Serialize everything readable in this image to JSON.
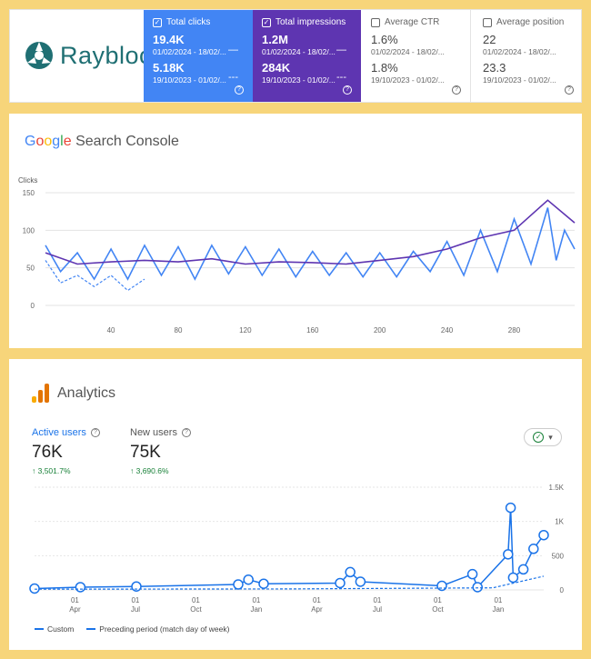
{
  "brand": {
    "name": "Raybloc"
  },
  "metrics": [
    {
      "label": "Total clicks",
      "checked": true,
      "current": "19.4K",
      "current_range": "01/02/2024 - 18/02/...",
      "previous": "5.18K",
      "previous_range": "19/10/2023 - 01/02/..."
    },
    {
      "label": "Total impressions",
      "checked": true,
      "current": "1.2M",
      "current_range": "01/02/2024 - 18/02/...",
      "previous": "284K",
      "previous_range": "19/10/2023 - 01/02/..."
    },
    {
      "label": "Average CTR",
      "checked": false,
      "current": "1.6%",
      "current_range": "01/02/2024 - 18/02/...",
      "previous": "1.8%",
      "previous_range": "19/10/2023 - 01/02/..."
    },
    {
      "label": "Average position",
      "checked": false,
      "current": "22",
      "current_range": "01/02/2024 - 18/02/...",
      "previous": "23.3",
      "previous_range": "19/10/2023 - 01/02/..."
    }
  ],
  "gsc": {
    "title_google": [
      "G",
      "o",
      "o",
      "g",
      "l",
      "e"
    ],
    "title_rest": "Search Console"
  },
  "analytics": {
    "title": "Analytics",
    "kpis": [
      {
        "label": "Active users",
        "value": "76K",
        "change": "↑ 3,501.7%"
      },
      {
        "label": "New users",
        "value": "75K",
        "change": "↑ 3,690.6%"
      }
    ],
    "legend": {
      "custom": "Custom",
      "preceding": "Preceding period (match day of week)"
    }
  },
  "colors": {
    "clicks": "#4285f4",
    "impressions": "#5e35b1",
    "ga_line": "#1a73e8"
  },
  "chart_data": [
    {
      "type": "line",
      "ylabel": "Clicks",
      "yticks": [
        0,
        50,
        100,
        150
      ],
      "xticks": [
        40,
        80,
        120,
        160,
        200,
        240,
        280
      ],
      "xlim": [
        1,
        316
      ],
      "ylim": [
        0,
        150
      ],
      "grid": true,
      "series": [
        {
          "style": "solid-light",
          "color": "#4285f4",
          "points": [
            [
              1,
              80
            ],
            [
              10,
              45
            ],
            [
              20,
              70
            ],
            [
              30,
              35
            ],
            [
              40,
              75
            ],
            [
              50,
              35
            ],
            [
              60,
              80
            ],
            [
              70,
              40
            ],
            [
              80,
              78
            ],
            [
              90,
              35
            ],
            [
              100,
              80
            ],
            [
              110,
              42
            ],
            [
              120,
              78
            ],
            [
              130,
              40
            ],
            [
              140,
              75
            ],
            [
              150,
              38
            ],
            [
              160,
              72
            ],
            [
              170,
              40
            ],
            [
              180,
              70
            ],
            [
              190,
              38
            ],
            [
              200,
              70
            ],
            [
              210,
              38
            ],
            [
              220,
              72
            ],
            [
              230,
              45
            ],
            [
              240,
              85
            ],
            [
              250,
              40
            ],
            [
              260,
              100
            ],
            [
              270,
              45
            ],
            [
              280,
              115
            ],
            [
              290,
              55
            ],
            [
              300,
              130
            ],
            [
              305,
              60
            ],
            [
              310,
              100
            ],
            [
              316,
              75
            ]
          ]
        },
        {
          "style": "solid-dark",
          "color": "#5e35b1",
          "points": [
            [
              1,
              70
            ],
            [
              20,
              55
            ],
            [
              40,
              58
            ],
            [
              60,
              60
            ],
            [
              80,
              58
            ],
            [
              100,
              62
            ],
            [
              120,
              55
            ],
            [
              140,
              58
            ],
            [
              160,
              57
            ],
            [
              180,
              55
            ],
            [
              200,
              60
            ],
            [
              220,
              65
            ],
            [
              240,
              75
            ],
            [
              260,
              90
            ],
            [
              280,
              100
            ],
            [
              300,
              140
            ],
            [
              316,
              110
            ]
          ]
        },
        {
          "style": "dashed",
          "color": "#4285f4",
          "points": [
            [
              1,
              60
            ],
            [
              10,
              30
            ],
            [
              20,
              40
            ],
            [
              30,
              25
            ],
            [
              40,
              40
            ],
            [
              50,
              20
            ],
            [
              60,
              35
            ]
          ]
        }
      ]
    },
    {
      "type": "line",
      "yticks": [
        "0",
        "500",
        "1K",
        "1.5K"
      ],
      "ytick_values": [
        0,
        500,
        1000,
        1500
      ],
      "xticks": [
        {
          "day": "01",
          "month": "Apr"
        },
        {
          "day": "01",
          "month": "Jul"
        },
        {
          "day": "01",
          "month": "Oct"
        },
        {
          "day": "01",
          "month": "Jan"
        },
        {
          "day": "01",
          "month": "Apr"
        },
        {
          "day": "01",
          "month": "Jul"
        },
        {
          "day": "01",
          "month": "Oct"
        },
        {
          "day": "01",
          "month": "Jan"
        }
      ],
      "ylim": [
        0,
        1500
      ],
      "grid": true,
      "series": [
        {
          "name": "Custom",
          "points": [
            [
              0,
              20
            ],
            [
              0.09,
              40
            ],
            [
              0.2,
              50
            ],
            [
              0.4,
              80
            ],
            [
              0.42,
              150
            ],
            [
              0.45,
              90
            ],
            [
              0.6,
              100
            ],
            [
              0.62,
              260
            ],
            [
              0.64,
              120
            ],
            [
              0.8,
              60
            ],
            [
              0.86,
              230
            ],
            [
              0.87,
              40
            ],
            [
              0.93,
              520
            ],
            [
              0.935,
              1200
            ],
            [
              0.94,
              180
            ],
            [
              0.96,
              300
            ],
            [
              0.98,
              600
            ],
            [
              1,
              800
            ]
          ]
        },
        {
          "name": "Preceding period (match day of week)",
          "points": [
            [
              0,
              10
            ],
            [
              0.5,
              15
            ],
            [
              0.9,
              30
            ],
            [
              1,
              200
            ]
          ]
        }
      ]
    }
  ]
}
